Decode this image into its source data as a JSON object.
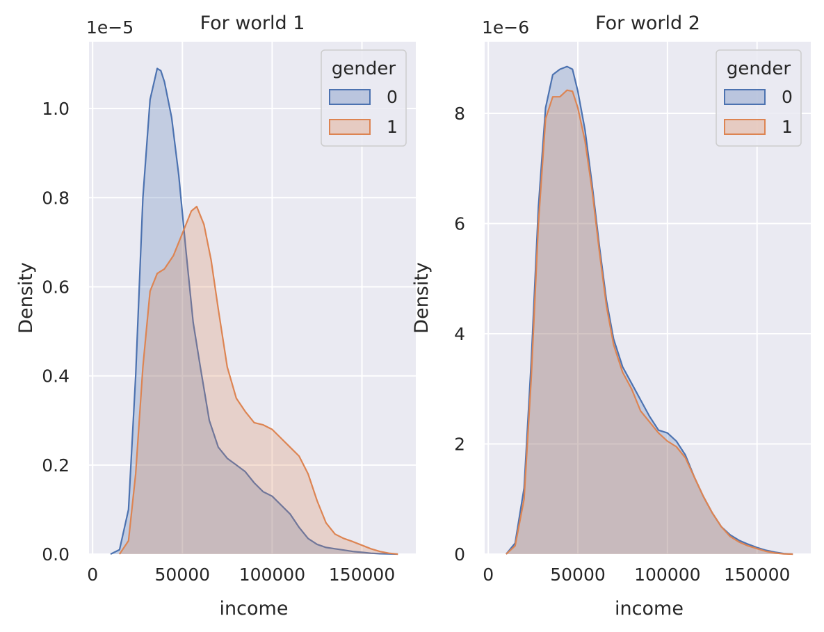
{
  "chart_data": [
    {
      "type": "area",
      "title": "For world 1",
      "xlabel": "income",
      "ylabel": "Density",
      "y_offset_label": "1e−5",
      "xlim": [
        -2000,
        180000
      ],
      "ylim": [
        0,
        1.15
      ],
      "xticks": [
        0,
        50000,
        100000,
        150000
      ],
      "xtick_labels": [
        "0",
        "50000",
        "100000",
        "150000"
      ],
      "yticks": [
        0,
        0.2,
        0.4,
        0.6,
        0.8,
        1.0
      ],
      "ytick_labels": [
        "0.0",
        "0.2",
        "0.4",
        "0.6",
        "0.8",
        "1.0"
      ],
      "grid": true,
      "legend": {
        "title": "gender",
        "placement": "top-right"
      },
      "series": [
        {
          "name": "0",
          "color": "#4c72b0",
          "x": [
            10000,
            15000,
            20000,
            24000,
            28000,
            32000,
            36000,
            38000,
            40000,
            44000,
            48000,
            52000,
            56000,
            60000,
            65000,
            70000,
            75000,
            80000,
            85000,
            90000,
            95000,
            100000,
            105000,
            110000,
            115000,
            120000,
            125000,
            130000,
            135000,
            140000,
            145000,
            150000,
            155000,
            160000,
            165000,
            170000
          ],
          "y": [
            0.0,
            0.01,
            0.1,
            0.4,
            0.8,
            1.02,
            1.09,
            1.085,
            1.06,
            0.98,
            0.85,
            0.68,
            0.52,
            0.42,
            0.3,
            0.24,
            0.215,
            0.2,
            0.185,
            0.16,
            0.14,
            0.13,
            0.11,
            0.09,
            0.06,
            0.035,
            0.022,
            0.015,
            0.012,
            0.009,
            0.006,
            0.004,
            0.002,
            0.001,
            0.0005,
            0.0
          ]
        },
        {
          "name": "1",
          "color": "#dd8452",
          "x": [
            15000,
            20000,
            24000,
            28000,
            32000,
            36000,
            40000,
            45000,
            50000,
            55000,
            58000,
            62000,
            66000,
            70000,
            75000,
            80000,
            85000,
            90000,
            95000,
            100000,
            105000,
            110000,
            115000,
            120000,
            125000,
            130000,
            135000,
            140000,
            145000,
            150000,
            155000,
            160000,
            165000,
            170000
          ],
          "y": [
            0.0,
            0.03,
            0.18,
            0.42,
            0.59,
            0.63,
            0.64,
            0.67,
            0.72,
            0.77,
            0.78,
            0.74,
            0.66,
            0.55,
            0.42,
            0.35,
            0.32,
            0.295,
            0.29,
            0.28,
            0.26,
            0.24,
            0.22,
            0.18,
            0.12,
            0.07,
            0.045,
            0.035,
            0.028,
            0.02,
            0.012,
            0.006,
            0.002,
            0.0
          ]
        }
      ]
    },
    {
      "type": "area",
      "title": "For world 2",
      "xlabel": "income",
      "ylabel": "Density",
      "y_offset_label": "1e−6",
      "xlim": [
        -2000,
        180000
      ],
      "ylim": [
        0,
        9.3
      ],
      "xticks": [
        0,
        50000,
        100000,
        150000
      ],
      "xtick_labels": [
        "0",
        "50000",
        "100000",
        "150000"
      ],
      "yticks": [
        0,
        2,
        4,
        6,
        8
      ],
      "ytick_labels": [
        "0",
        "2",
        "4",
        "6",
        "8"
      ],
      "grid": true,
      "legend": {
        "title": "gender",
        "placement": "top-right"
      },
      "series": [
        {
          "name": "0",
          "color": "#4c72b0",
          "x": [
            10000,
            15000,
            20000,
            24000,
            28000,
            32000,
            36000,
            40000,
            44000,
            47000,
            50000,
            54000,
            58000,
            62000,
            66000,
            70000,
            75000,
            80000,
            85000,
            90000,
            95000,
            100000,
            105000,
            110000,
            115000,
            120000,
            125000,
            130000,
            135000,
            140000,
            145000,
            150000,
            155000,
            160000,
            165000,
            170000
          ],
          "y": [
            0.0,
            0.2,
            1.2,
            3.5,
            6.3,
            8.1,
            8.7,
            8.8,
            8.85,
            8.8,
            8.4,
            7.7,
            6.7,
            5.6,
            4.6,
            3.9,
            3.4,
            3.1,
            2.8,
            2.5,
            2.25,
            2.2,
            2.05,
            1.8,
            1.4,
            1.05,
            0.75,
            0.5,
            0.35,
            0.25,
            0.18,
            0.12,
            0.07,
            0.035,
            0.01,
            0.0
          ]
        },
        {
          "name": "1",
          "color": "#dd8452",
          "x": [
            10000,
            15000,
            20000,
            24000,
            28000,
            32000,
            36000,
            40000,
            44000,
            47000,
            50000,
            54000,
            58000,
            62000,
            66000,
            70000,
            75000,
            80000,
            85000,
            90000,
            95000,
            100000,
            105000,
            110000,
            115000,
            120000,
            125000,
            130000,
            135000,
            140000,
            145000,
            150000,
            155000,
            160000,
            165000,
            170000
          ],
          "y": [
            0.0,
            0.15,
            1.0,
            3.2,
            6.0,
            7.9,
            8.3,
            8.3,
            8.42,
            8.4,
            8.1,
            7.5,
            6.6,
            5.5,
            4.5,
            3.8,
            3.3,
            3.0,
            2.6,
            2.4,
            2.2,
            2.05,
            1.95,
            1.75,
            1.4,
            1.05,
            0.75,
            0.5,
            0.32,
            0.22,
            0.15,
            0.1,
            0.05,
            0.02,
            0.005,
            0.0
          ]
        }
      ]
    }
  ]
}
